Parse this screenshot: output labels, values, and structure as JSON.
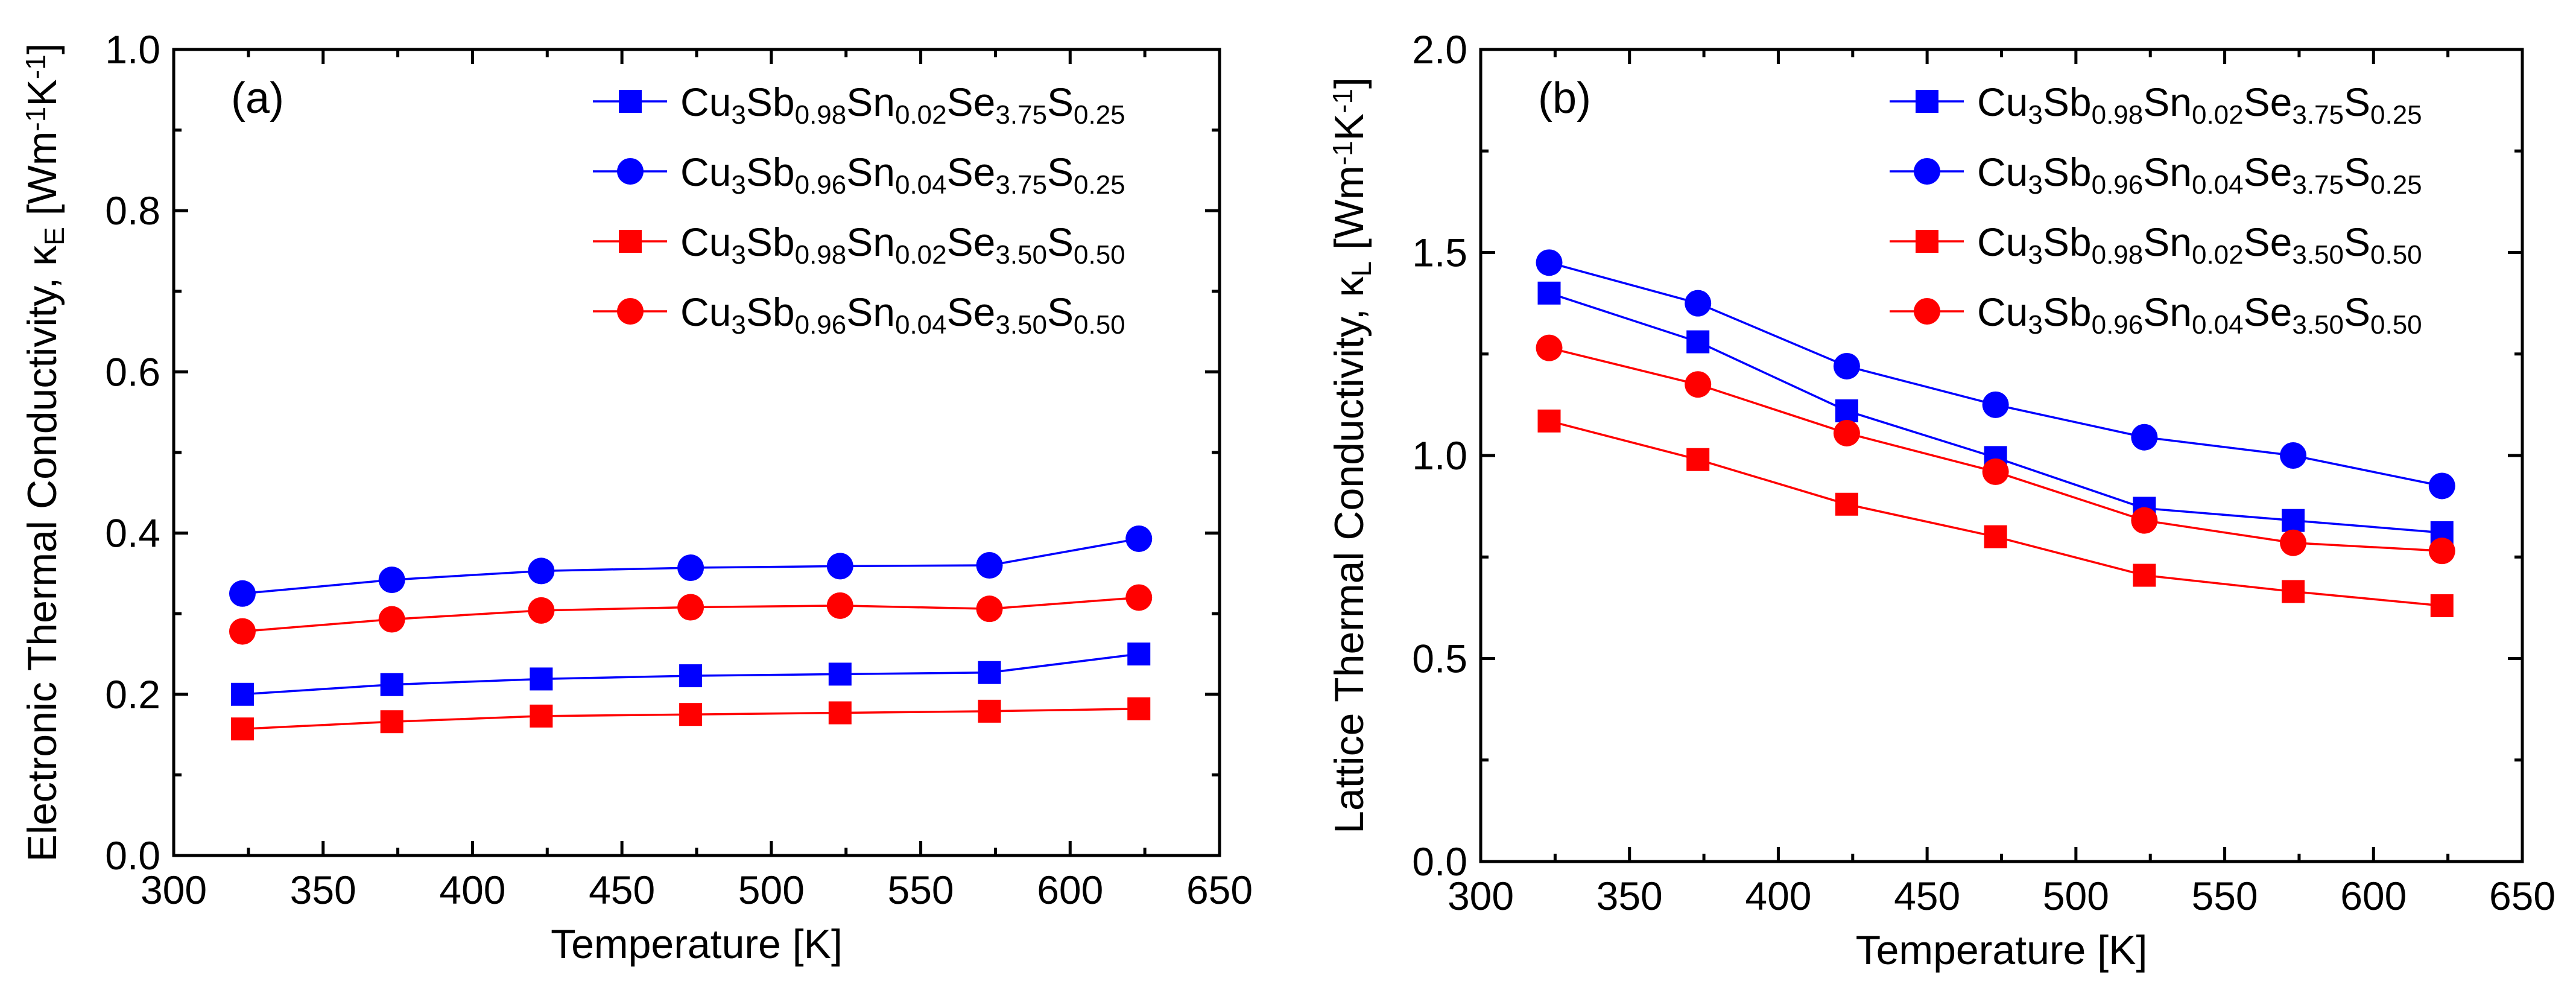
{
  "chart_data": [
    {
      "type": "line",
      "panel_label": "(a)",
      "title": "",
      "xlabel": "Temperature [K]",
      "ylabel": {
        "prefix": "Electronic Thermal Conductivity, ",
        "symbol": "κ",
        "symbol_sub": "E",
        "unit_open": " [Wm",
        "unit_sup1": "-1",
        "unit_mid": "K",
        "unit_sup2": "-1",
        "unit_close": "]"
      },
      "xlim": [
        300,
        650
      ],
      "ylim": [
        0.0,
        1.0
      ],
      "xticks": [
        300,
        350,
        400,
        450,
        500,
        550,
        600,
        650
      ],
      "yticks": [
        0.0,
        0.2,
        0.4,
        0.6,
        0.8,
        1.0
      ],
      "x_tick_labels": [
        "300",
        "350",
        "400",
        "450",
        "500",
        "550",
        "600",
        "650"
      ],
      "y_tick_labels": [
        "0.0",
        "0.2",
        "0.4",
        "0.6",
        "0.8",
        "1.0"
      ],
      "legend_position": "top-right",
      "x": [
        323,
        373,
        423,
        473,
        523,
        573,
        623
      ],
      "series": [
        {
          "name": "Cu3Sb0.98Sn0.02Se3.75S0.25",
          "color": "#0000ff",
          "marker": "square",
          "values": [
            0.2,
            0.212,
            0.219,
            0.223,
            0.225,
            0.227,
            0.25
          ]
        },
        {
          "name": "Cu3Sb0.96Sn0.04Se3.75S0.25",
          "color": "#0000ff",
          "marker": "circle",
          "values": [
            0.325,
            0.342,
            0.353,
            0.357,
            0.359,
            0.36,
            0.393
          ]
        },
        {
          "name": "Cu3Sb0.98Sn0.02Se3.50S0.50",
          "color": "#ff0000",
          "marker": "square",
          "values": [
            0.157,
            0.166,
            0.173,
            0.175,
            0.177,
            0.179,
            0.182
          ]
        },
        {
          "name": "Cu3Sb0.96Sn0.04Se3.50S0.50",
          "color": "#ff0000",
          "marker": "circle",
          "values": [
            0.278,
            0.293,
            0.304,
            0.308,
            0.31,
            0.306,
            0.32
          ]
        }
      ]
    },
    {
      "type": "line",
      "panel_label": "(b)",
      "title": "",
      "xlabel": "Temperature [K]",
      "ylabel": {
        "prefix": "Lattice Thermal Conductivity, ",
        "symbol": "κ",
        "symbol_sub": "L",
        "unit_open": " [Wm",
        "unit_sup1": "-1",
        "unit_mid": "K",
        "unit_sup2": "-1",
        "unit_close": "]"
      },
      "xlim": [
        300,
        650
      ],
      "ylim": [
        0.0,
        2.0
      ],
      "xticks": [
        300,
        350,
        400,
        450,
        500,
        550,
        600,
        650
      ],
      "yticks": [
        0.0,
        0.5,
        1.0,
        1.5,
        2.0
      ],
      "x_tick_labels": [
        "300",
        "350",
        "400",
        "450",
        "500",
        "550",
        "600",
        "650"
      ],
      "y_tick_labels": [
        "0.0",
        "0.5",
        "1.0",
        "1.5",
        "2.0"
      ],
      "legend_position": "top-right",
      "x": [
        323,
        373,
        423,
        473,
        523,
        573,
        623
      ],
      "series": [
        {
          "name": "Cu3Sb0.98Sn0.02Se3.75S0.25",
          "color": "#0000ff",
          "marker": "square",
          "values": [
            1.4,
            1.28,
            1.11,
            0.995,
            0.87,
            0.84,
            0.81
          ]
        },
        {
          "name": "Cu3Sb0.96Sn0.04Se3.75S0.25",
          "color": "#0000ff",
          "marker": "circle",
          "values": [
            1.475,
            1.375,
            1.22,
            1.125,
            1.045,
            1.0,
            0.925
          ]
        },
        {
          "name": "Cu3Sb0.98Sn0.02Se3.50S0.50",
          "color": "#ff0000",
          "marker": "square",
          "values": [
            1.085,
            0.99,
            0.88,
            0.8,
            0.705,
            0.665,
            0.63
          ]
        },
        {
          "name": "Cu3Sb0.96Sn0.04Se3.50S0.50",
          "color": "#ff0000",
          "marker": "circle",
          "values": [
            1.265,
            1.175,
            1.055,
            0.96,
            0.84,
            0.785,
            0.765
          ]
        }
      ]
    }
  ]
}
